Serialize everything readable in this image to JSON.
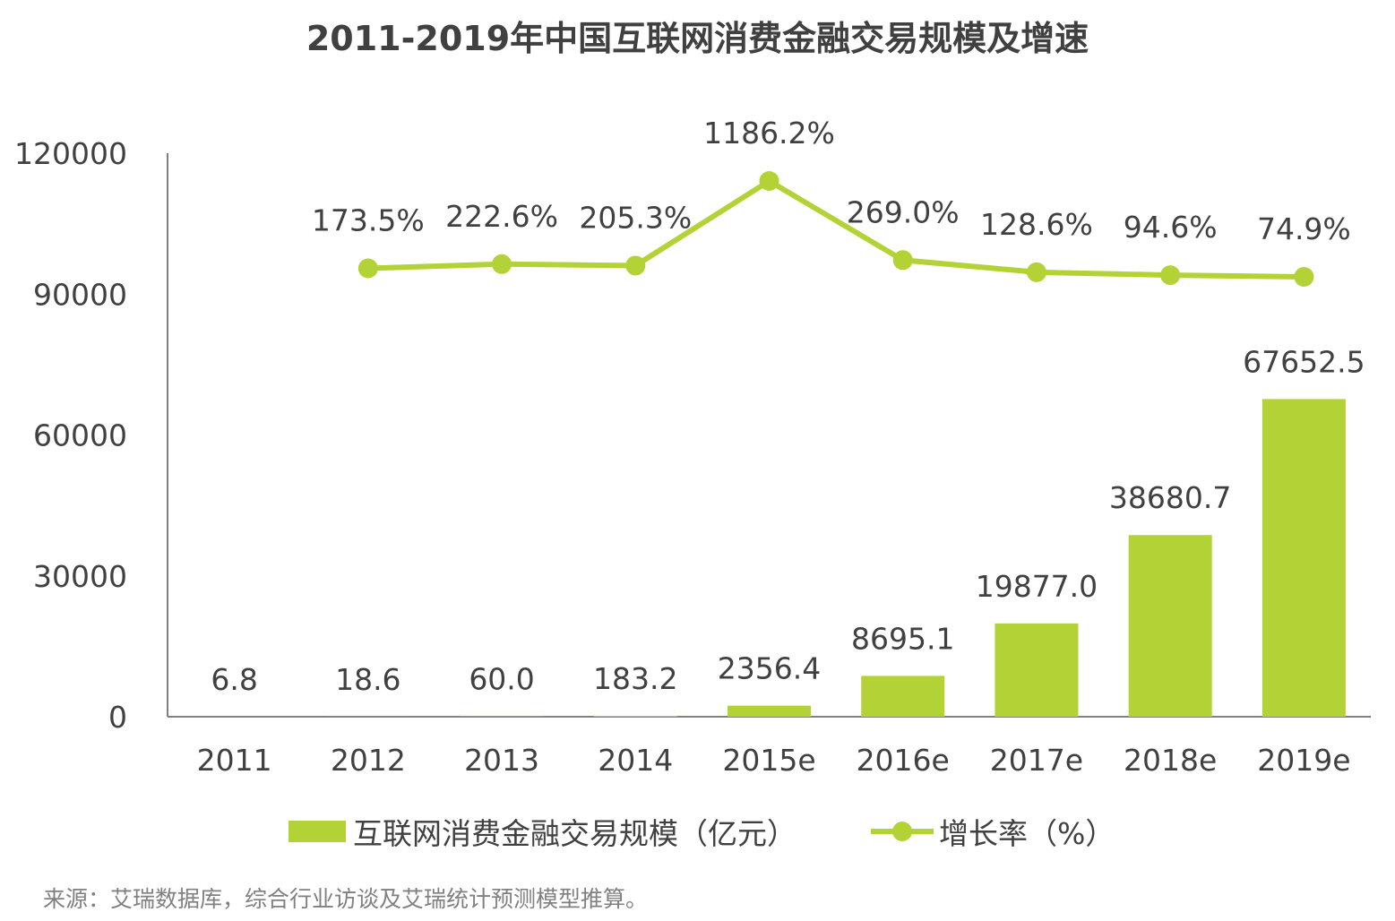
{
  "chart_data": {
    "type": "bar",
    "title": "2011-2019年中国互联网消费金融交易规模及增速",
    "categories": [
      "2011",
      "2012",
      "2013",
      "2014",
      "2015e",
      "2016e",
      "2017e",
      "2018e",
      "2019e"
    ],
    "series": [
      {
        "name": "互联网消费金融交易规模（亿元）",
        "type": "bar",
        "values": [
          6.8,
          18.6,
          60.0,
          183.2,
          2356.4,
          8695.1,
          19877.0,
          38680.7,
          67652.5
        ],
        "labels": [
          "6.8",
          "18.6",
          "60.0",
          "183.2",
          "2356.4",
          "8695.1",
          "19877.0",
          "38680.7",
          "67652.5"
        ]
      },
      {
        "name": "增长率（%）",
        "type": "line",
        "values": [
          null,
          173.5,
          222.6,
          205.3,
          1186.2,
          269.0,
          128.6,
          94.6,
          74.9
        ],
        "labels": [
          "",
          "173.5%",
          "222.6%",
          "205.3%",
          "1186.2%",
          "269.0%",
          "128.6%",
          "94.6%",
          "74.9%"
        ]
      }
    ],
    "y_ticks": [
      "0",
      "30000",
      "60000",
      "90000",
      "120000"
    ],
    "ylim": [
      0,
      120000
    ],
    "legend_position": "bottom",
    "grid": false,
    "colors": {
      "bar": "#b3d235",
      "line": "#b3d235",
      "axis": "#808080",
      "text": "#404040"
    }
  },
  "legend": {
    "bar_label": "互联网消费金融交易规模（亿元）",
    "line_label": "增长率（%）"
  },
  "source": "来源：艾瑞数据库，综合行业访谈及艾瑞统计预测模型推算。"
}
